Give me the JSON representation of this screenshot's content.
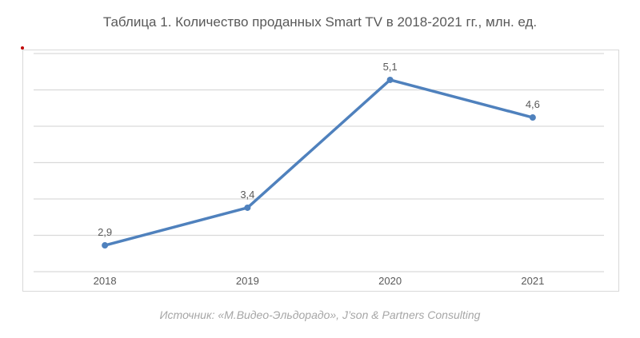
{
  "chart_data": {
    "type": "line",
    "title": "Таблица 1. Количество проданных Smart TV  в 2018-2021 гг., млн. ед.",
    "categories": [
      "2018",
      "2019",
      "2020",
      "2021"
    ],
    "series": [
      {
        "values": [
          2.9,
          3.4,
          5.1,
          4.6
        ],
        "labels": [
          "2,9",
          "3,4",
          "5,1",
          "4,6"
        ],
        "color": "#4f81bd"
      }
    ],
    "xlabel": "",
    "ylabel": "",
    "ylim": [
      2.55,
      5.45
    ],
    "grid": true,
    "legend": "none"
  },
  "source": "Источник: «М.Видео-Эльдорадо», J’son & Partners Consulting"
}
